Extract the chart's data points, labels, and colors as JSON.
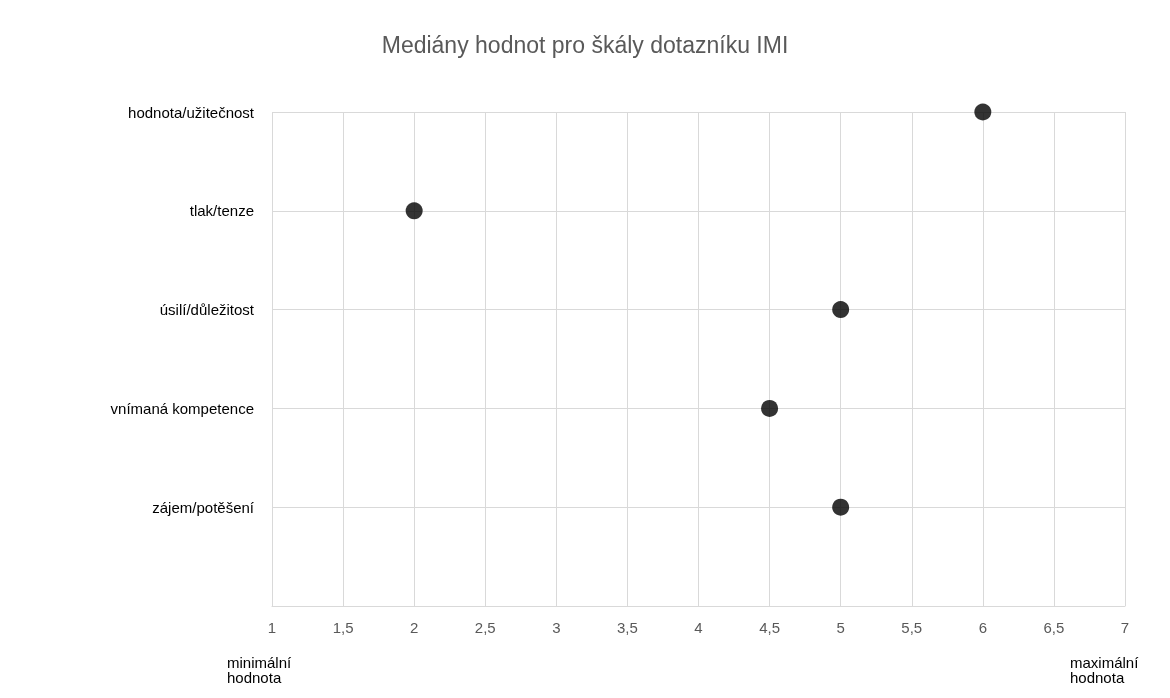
{
  "chart_data": {
    "type": "scatter",
    "orientation": "horizontal",
    "title": "Mediány hodnot pro škály dotazníku IMI",
    "categories": [
      "hodnota/užitečnost",
      "tlak/tenze",
      "úsilí/důležitost",
      "vnímaná kompetence",
      "zájem/potěšení",
      null
    ],
    "values": [
      6,
      2,
      5,
      4.5,
      5,
      null
    ],
    "color": "#000000",
    "marker": "circle",
    "xlim": [
      1,
      7
    ],
    "xticks": [
      1,
      {
        "value": 1.5,
        "label": "1,5"
      },
      2,
      {
        "value": 2.5,
        "label": "2,5"
      },
      3,
      {
        "value": 3.5,
        "label": "3,5"
      },
      4,
      {
        "value": 4.5,
        "label": "4,5"
      },
      5,
      {
        "value": 5.5,
        "label": "5,5"
      },
      6,
      {
        "value": 6.5,
        "label": "6,5"
      },
      7
    ],
    "grid": true,
    "annotations": [
      "minimální hodnota",
      "maximální hodnota"
    ]
  }
}
